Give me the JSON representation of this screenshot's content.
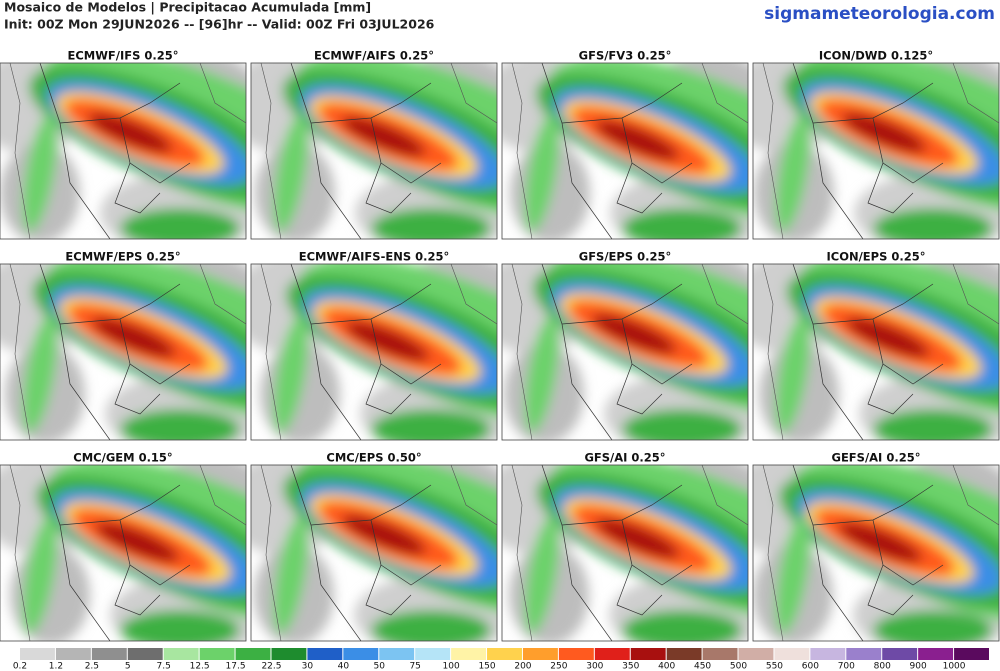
{
  "header": {
    "title": "Mosaico de Modelos | Precipitacao Acumulada [mm]",
    "subtitle": "Init: 00Z Mon 29JUN2026 -- [96]hr -- Valid: 00Z Fri 03JUL2026",
    "site": "sigmameteorologia.com"
  },
  "panels": [
    {
      "title": "ECMWF/IFS 0.25°"
    },
    {
      "title": "ECMWF/AIFS 0.25°"
    },
    {
      "title": "GFS/FV3 0.25°"
    },
    {
      "title": "ICON/DWD 0.125°"
    },
    {
      "title": "ECMWF/EPS 0.25°"
    },
    {
      "title": "ECMWF/AIFS-ENS 0.25°"
    },
    {
      "title": "GFS/EPS 0.25°"
    },
    {
      "title": "ICON/EPS 0.25°"
    },
    {
      "title": "CMC/GEM 0.15°"
    },
    {
      "title": "CMC/EPS 0.50°"
    },
    {
      "title": "GFS/AI 0.25°"
    },
    {
      "title": "GEFS/AI 0.25°"
    }
  ],
  "colorbar": {
    "labels": [
      "0.2",
      "1.2",
      "2.5",
      "5",
      "7.5",
      "12.5",
      "17.5",
      "22.5",
      "30",
      "40",
      "50",
      "75",
      "100",
      "150",
      "200",
      "250",
      "300",
      "350",
      "400",
      "450",
      "500",
      "550",
      "600",
      "700",
      "800",
      "900",
      "1000"
    ],
    "colors": [
      "#d9d9d9",
      "#b5b5b5",
      "#8f8f8f",
      "#6e6e6e",
      "#a8e6a0",
      "#6cd26a",
      "#3cb043",
      "#1e8c2e",
      "#1f5fc8",
      "#3b8ee6",
      "#7cc4f2",
      "#b5e4f7",
      "#fff3a6",
      "#ffd24d",
      "#ff9e2c",
      "#ff5a1f",
      "#e0201a",
      "#a8100f",
      "#7a3a28",
      "#a8786a",
      "#d1aea6",
      "#efe0dc",
      "#c7b6e0",
      "#9a80cc",
      "#6e4aa6",
      "#8a1f8f",
      "#5a0a5e"
    ]
  }
}
